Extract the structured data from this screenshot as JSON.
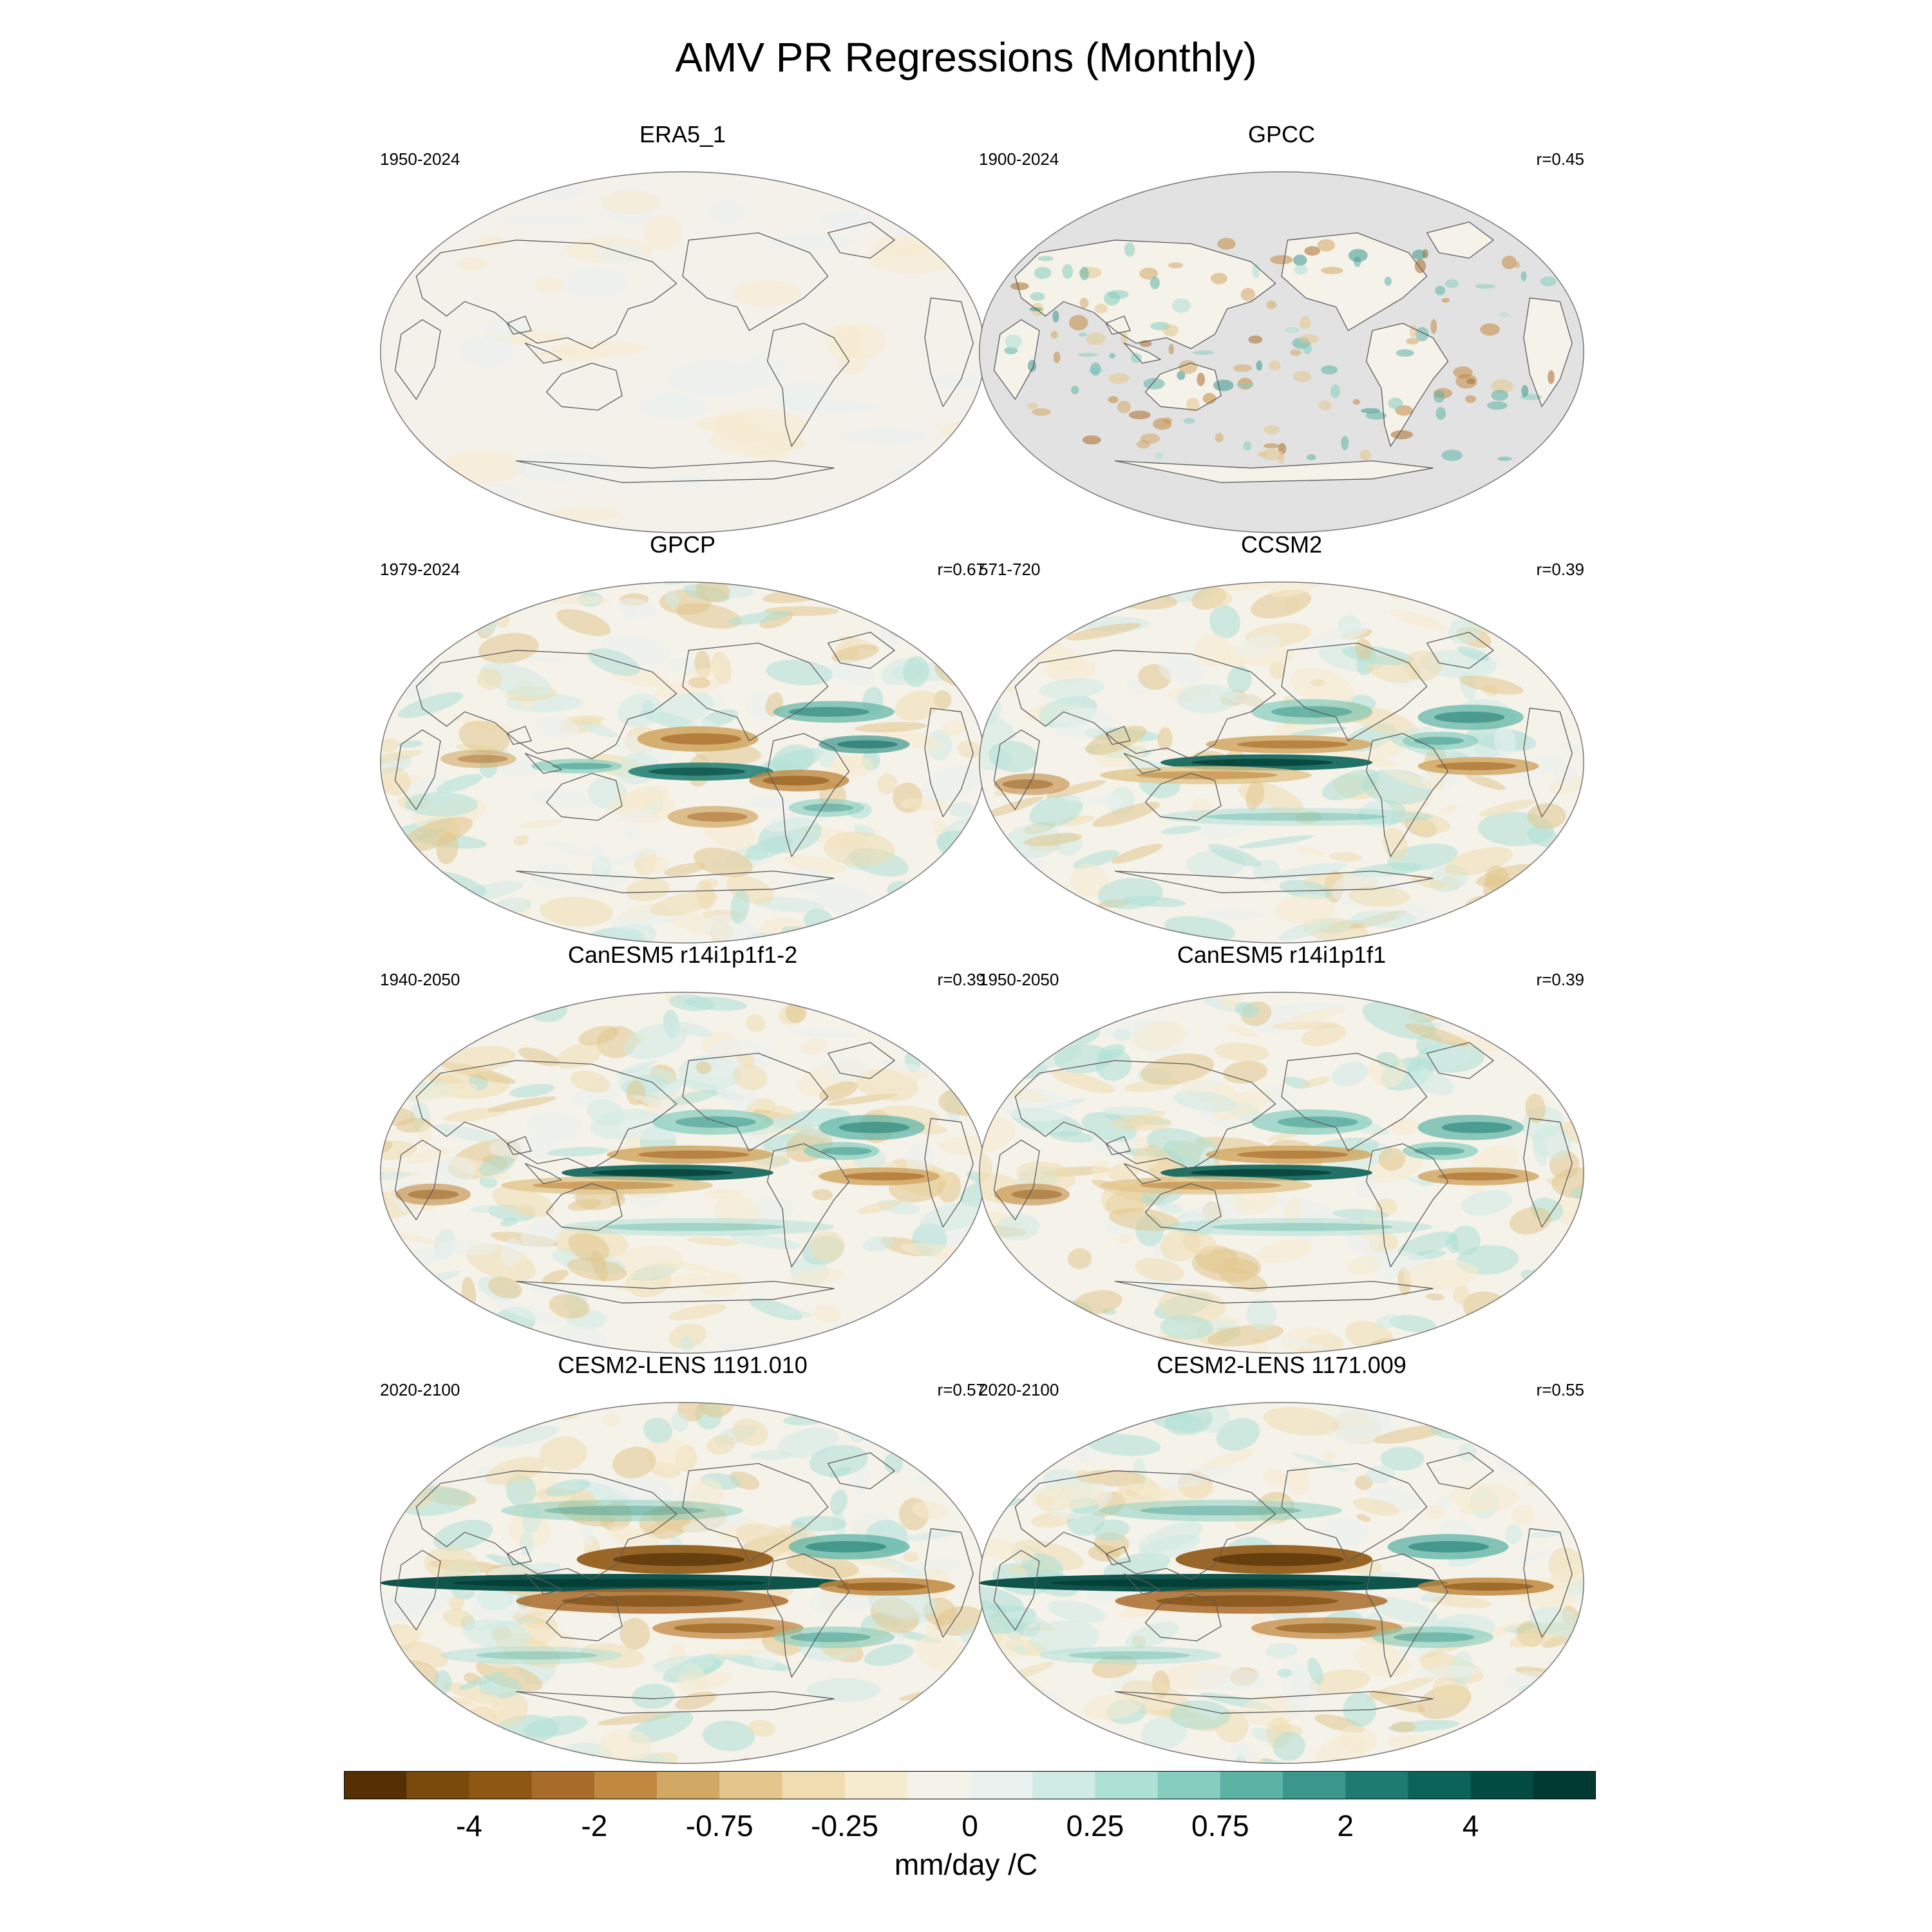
{
  "title": "AMV PR Regressions (Monthly)",
  "colorbar": {
    "units": "mm/day /C",
    "colors": [
      "#553005",
      "#7a4a0c",
      "#8e5713",
      "#a96b2a",
      "#c18840",
      "#d2a865",
      "#e2c68c",
      "#efdcb0",
      "#f6ebce",
      "#f5f2ea",
      "#eaf1ef",
      "#d0ebe4",
      "#aee0d6",
      "#85cdbe",
      "#5cb3a5",
      "#3b978c",
      "#1d7b71",
      "#0b6359",
      "#034c43",
      "#013a32"
    ],
    "labels": [
      "-4",
      "-2",
      "-0.75",
      "-0.25",
      "0",
      "0.25",
      "0.75",
      "2",
      "4"
    ]
  },
  "panels": [
    {
      "name": "ERA5_1",
      "period": "1950-2024",
      "corr": "",
      "style": "flat"
    },
    {
      "name": "GPCC",
      "period": "1900-2024",
      "corr": "r=0.45",
      "style": "land"
    },
    {
      "name": "GPCP",
      "period": "1979-2024",
      "corr": "r=0.67",
      "style": "obs"
    },
    {
      "name": "CCSM2",
      "period": "571-720",
      "corr": "r=0.39",
      "style": "model"
    },
    {
      "name": "CanESM5 r14i1p1f1-2",
      "period": "1940-2050",
      "corr": "r=0.39",
      "style": "model"
    },
    {
      "name": "CanESM5 r14i1p1f1",
      "period": "1950-2050",
      "corr": "r=0.39",
      "style": "model"
    },
    {
      "name": "CESM2-LENS 1191.010",
      "period": "2020-2100",
      "corr": "r=0.57",
      "style": "strong"
    },
    {
      "name": "CESM2-LENS 1171.009",
      "period": "2020-2100",
      "corr": "r=0.55",
      "style": "strong"
    }
  ]
}
